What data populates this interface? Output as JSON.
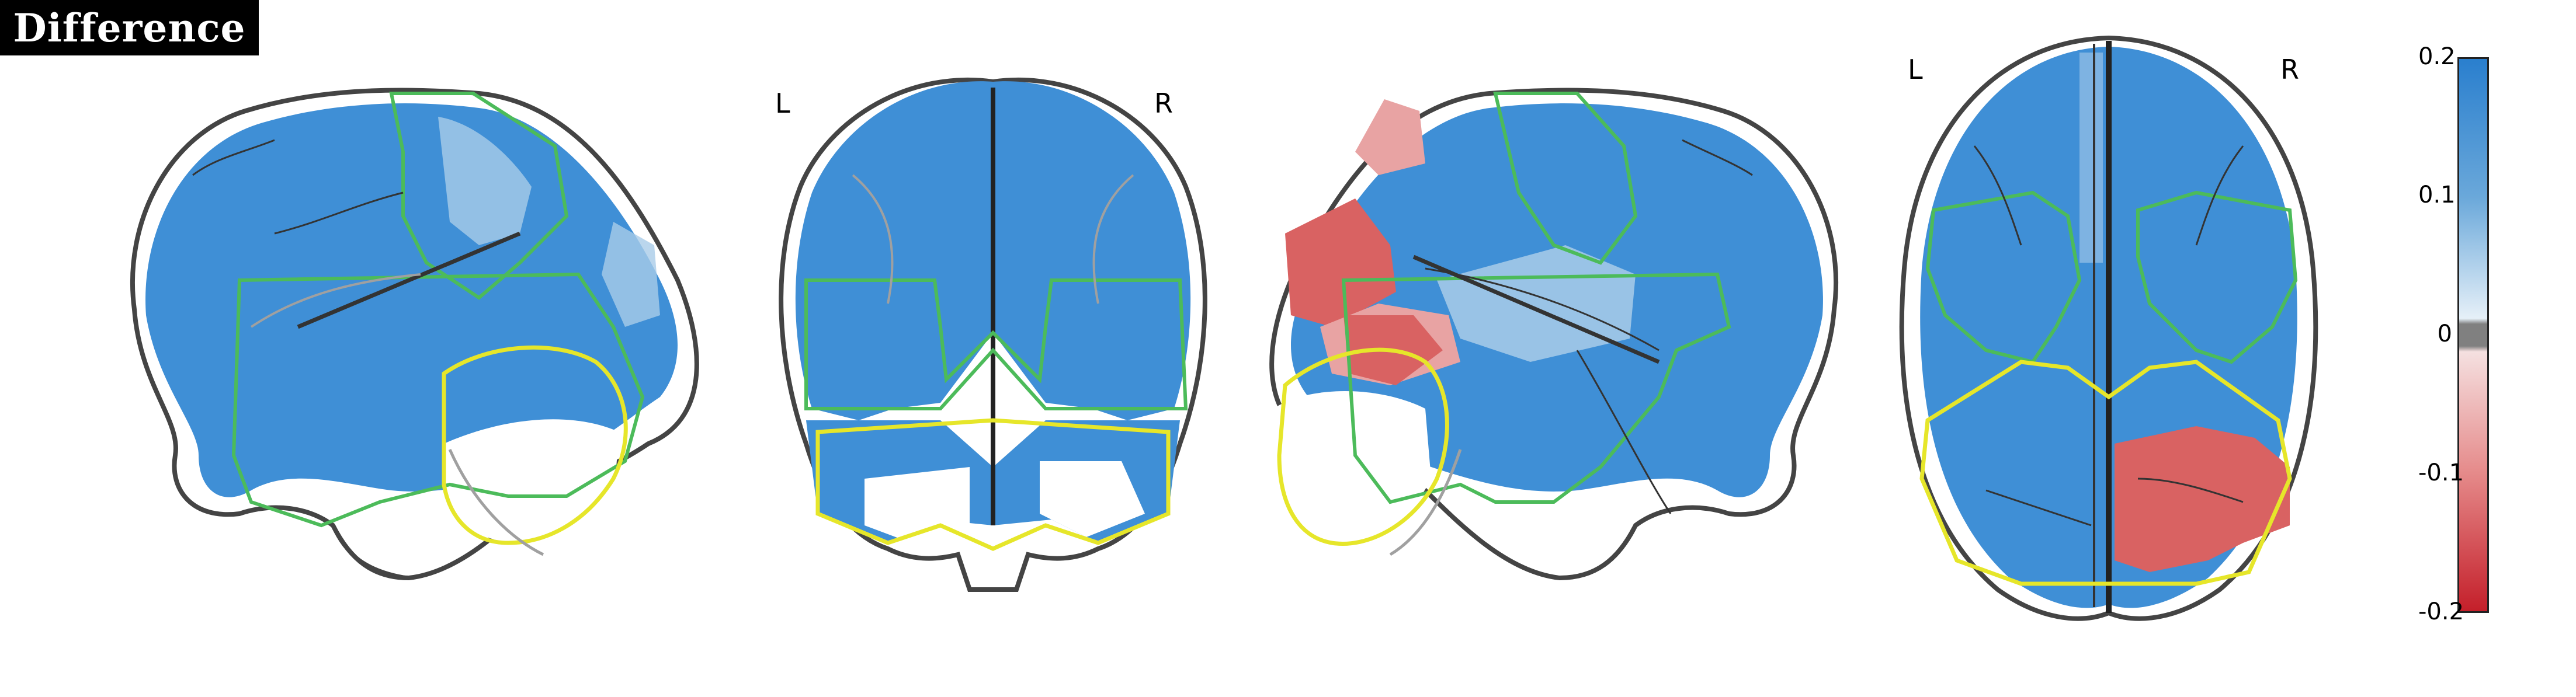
{
  "title": "Difference",
  "views": {
    "sagittal_left": {
      "name": "sagittal-left-view"
    },
    "coronal": {
      "left_label": "L",
      "right_label": "R"
    },
    "sagittal_right": {
      "name": "sagittal-right-view"
    },
    "axial": {
      "left_label": "L",
      "right_label": "R"
    }
  },
  "colorbar": {
    "ticks": [
      "0.2",
      "0.1",
      "0",
      "-0.1",
      "-0.2"
    ],
    "max": 0.2,
    "min": -0.2,
    "colors": {
      "high": "#2a7fce",
      "mid": "#f5f5f5",
      "low": "#c41f2a",
      "zero_band": "#808080"
    }
  },
  "colors": {
    "blue_fill": "#3f8fd6",
    "light_blue": "#a9cce9",
    "red_fill": "#d96262",
    "outline_dark": "#444444",
    "outline_grey": "#a0a0a0",
    "contour_green": "#4cbb5a",
    "contour_teal": "#2a8f8a",
    "contour_yellow": "#e6e62a"
  }
}
